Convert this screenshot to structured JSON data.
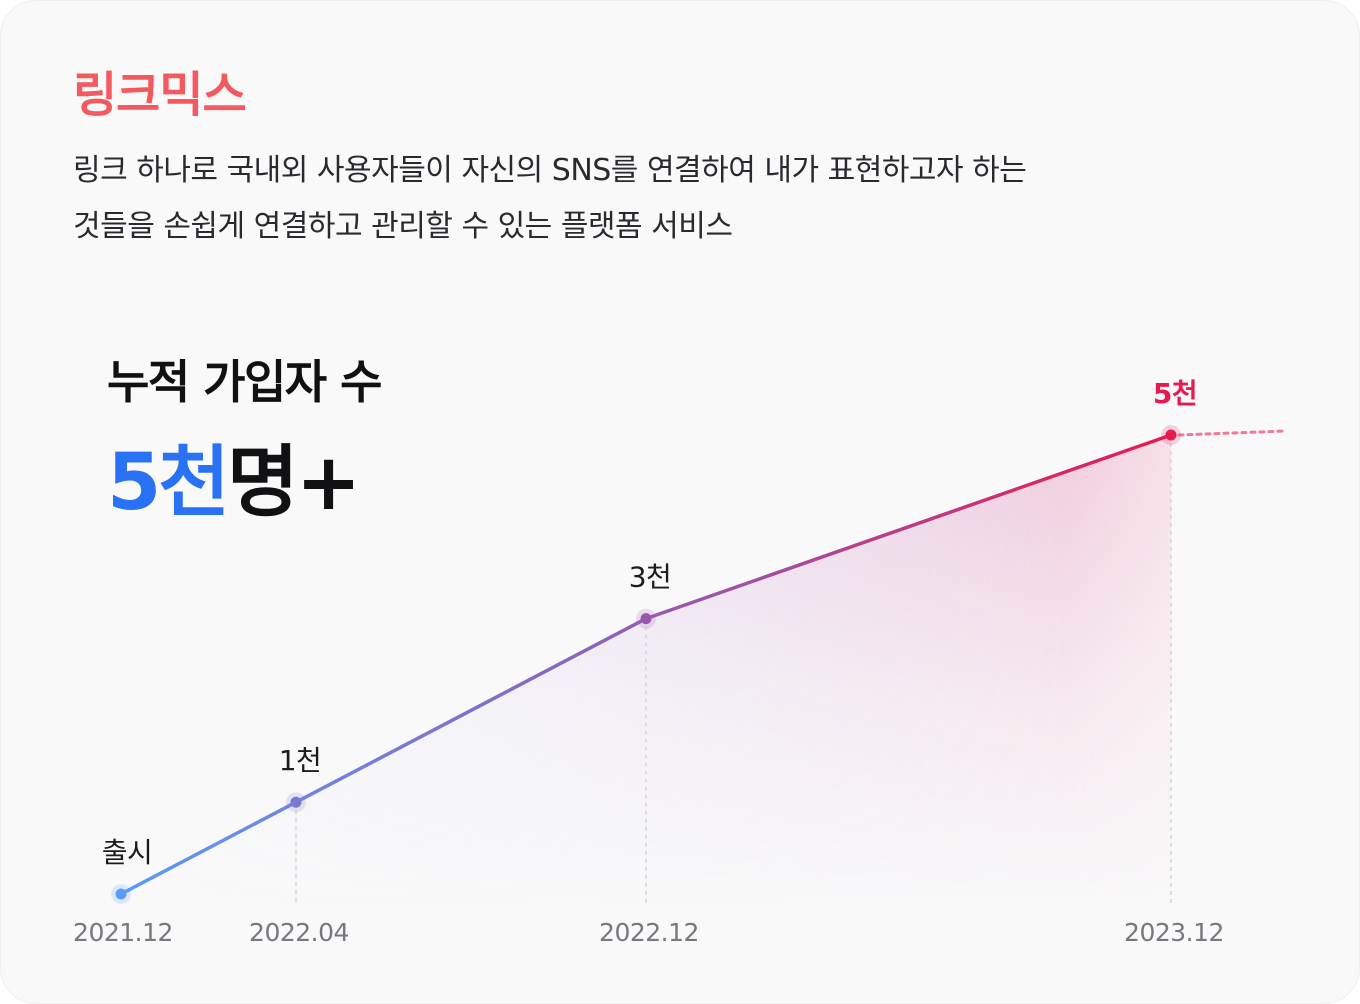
{
  "header": {
    "brand": "링크믹스",
    "description_lines": [
      "링크 하나로 국내외 사용자들이 자신의 SNS를 연결하여 내가 표현하고자 하는",
      "것들을 손쉽게 연결하고 관리할 수 있는 플랫폼 서비스"
    ]
  },
  "stat": {
    "label": "누적 가입자 수",
    "value": "5천",
    "unit": "명",
    "suffix": "+"
  },
  "colors": {
    "brand": "#f25a60",
    "value": "#2a72f5",
    "line_start": "#5a9bf7",
    "line_mid": "#9a56ac",
    "line_end": "#e8194f"
  },
  "chart_data": {
    "type": "line",
    "title": "",
    "xlabel": "",
    "ylabel": "",
    "ylim": [
      0,
      5000
    ],
    "x": [
      "2021.12",
      "2022.04",
      "2022.12",
      "2023.12"
    ],
    "x_months": [
      0,
      4,
      12,
      24
    ],
    "values": [
      0,
      1000,
      3000,
      5000
    ],
    "point_labels": [
      "출시",
      "1천",
      "3천",
      "5천"
    ],
    "highlight_index": 3,
    "trend_continues": true,
    "grid": false,
    "legend": "none"
  }
}
